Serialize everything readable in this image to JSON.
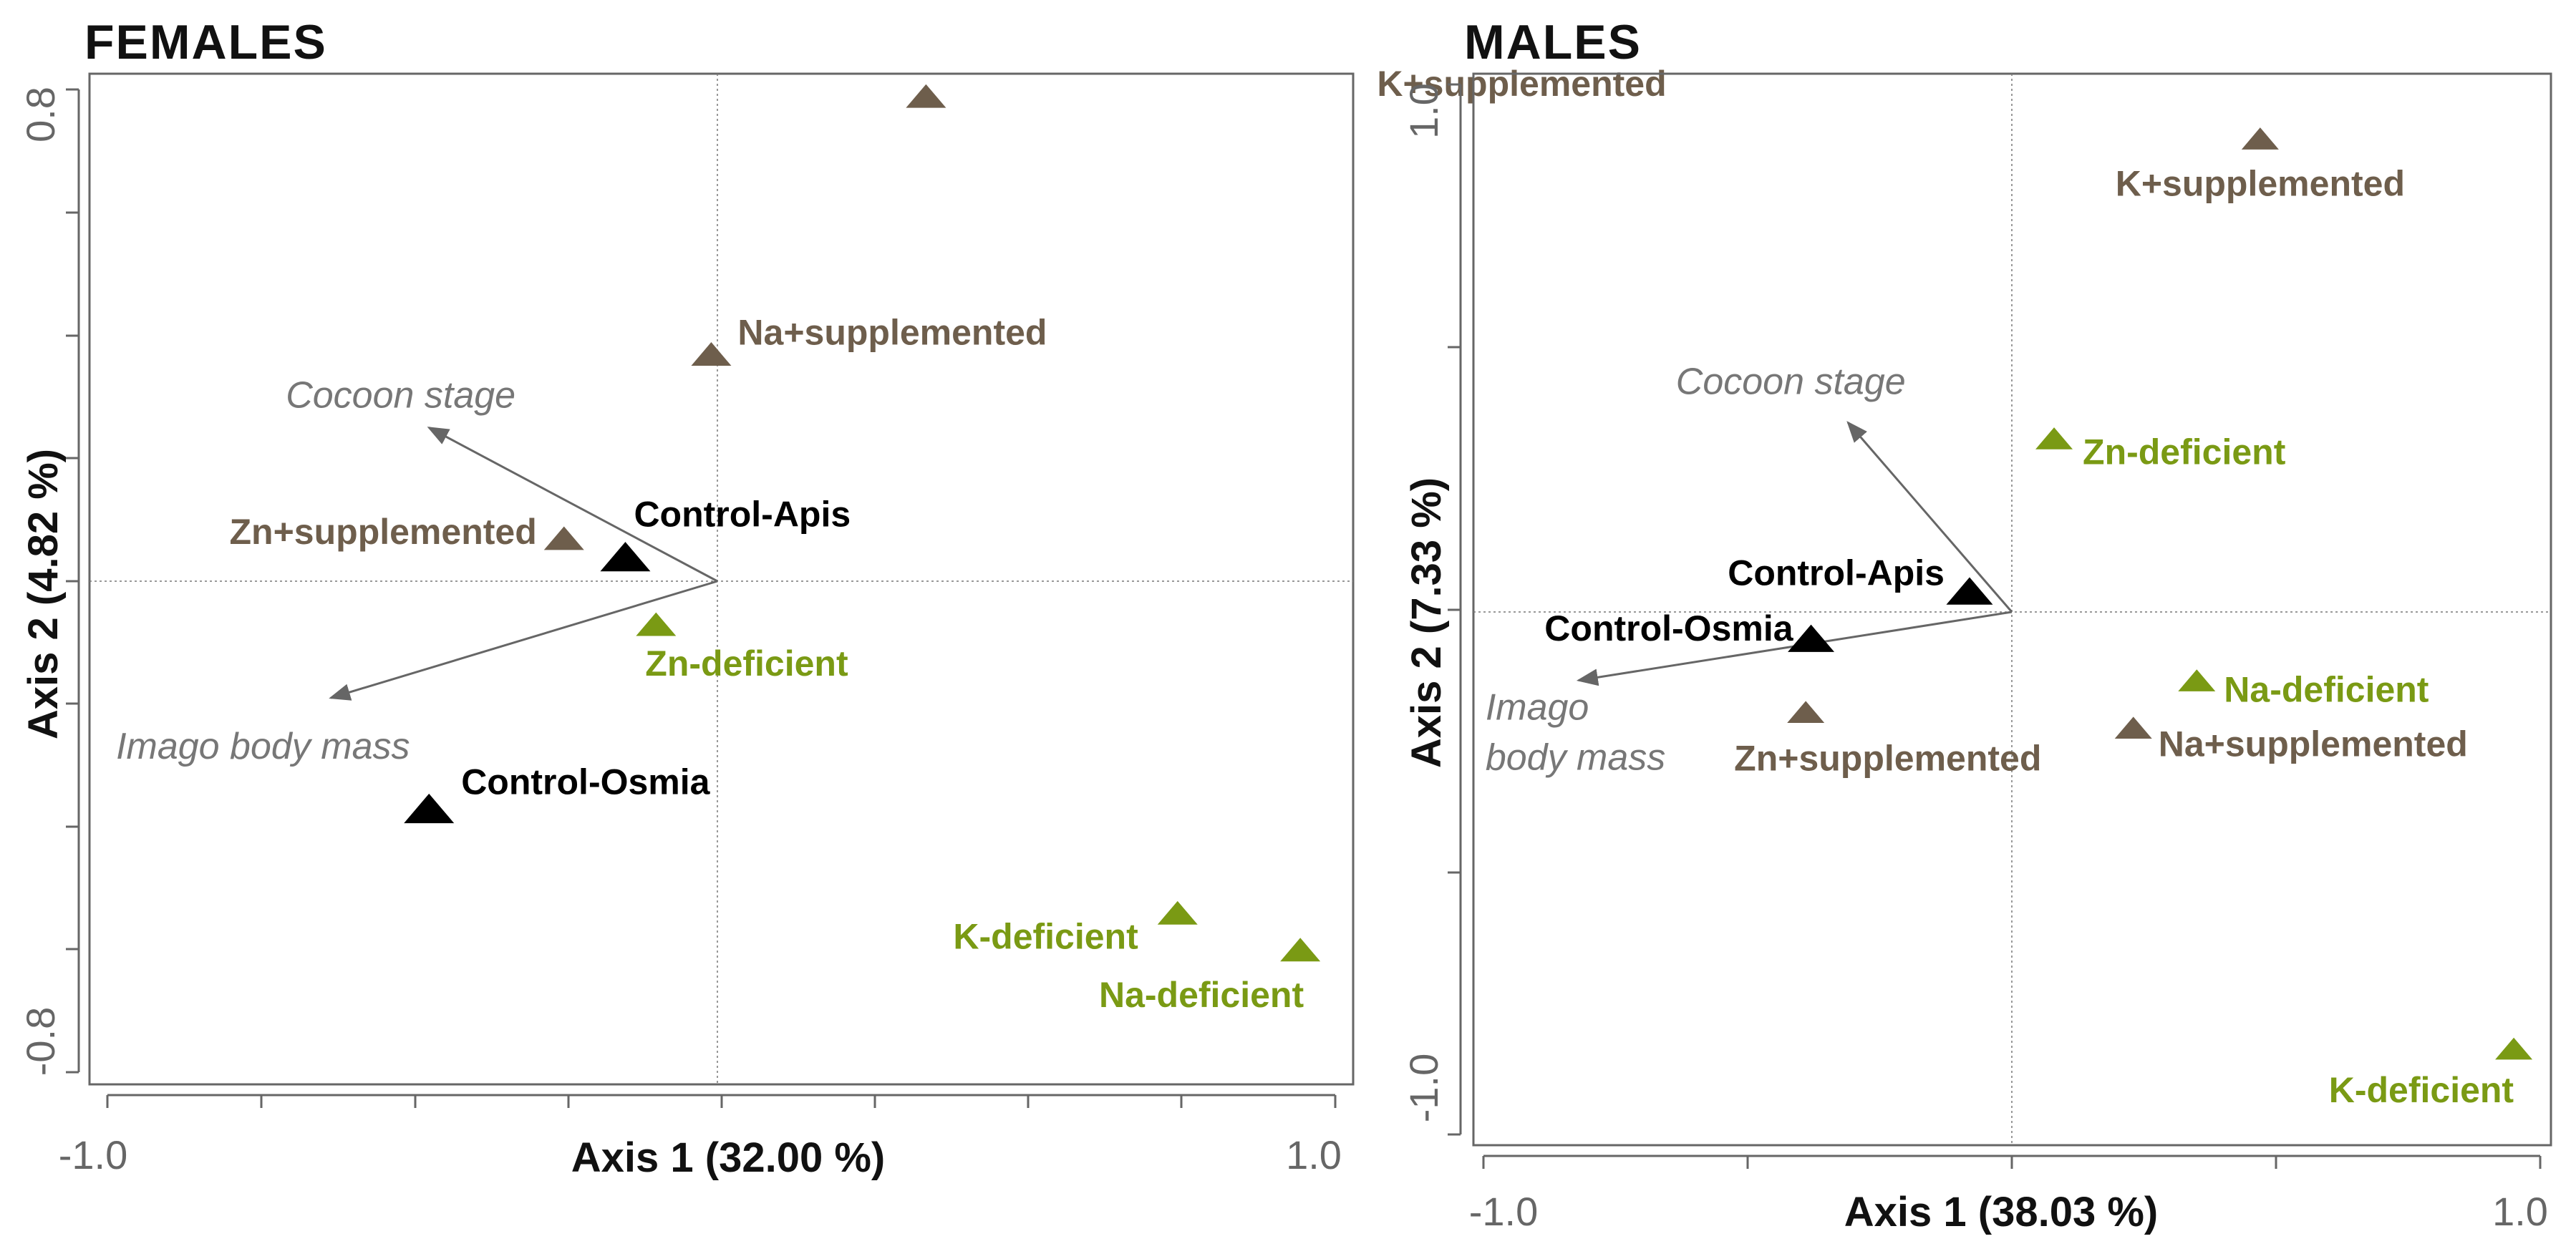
{
  "colors": {
    "supplemented": "#6e5e4c",
    "deficient": "#7a9a14",
    "control": "#000000",
    "vector": "#666666",
    "frame": "#666666",
    "grid": "#777777"
  },
  "chart_data": [
    {
      "type": "scatter",
      "title": "FEMALES",
      "xlabel": "Axis 1 (32.00 %)",
      "ylabel": "Axis 2 (4.82 %)",
      "xlim": [
        -1.0,
        1.0
      ],
      "ylim": [
        -0.8,
        0.8
      ],
      "x_tick_labels": [
        "-1.0",
        "1.0"
      ],
      "y_tick_labels": [
        "-0.8",
        "0.8"
      ],
      "points": [
        {
          "label": "K+supplemented",
          "group": "supplemented",
          "x": 0.34,
          "y": 0.79
        },
        {
          "label": "Na+supplemented",
          "group": "supplemented",
          "x": -0.01,
          "y": 0.37
        },
        {
          "label": "Zn+supplemented",
          "group": "supplemented",
          "x": -0.25,
          "y": 0.07
        },
        {
          "label": "Control-Apis",
          "group": "control",
          "x": -0.15,
          "y": 0.04
        },
        {
          "label": "Zn-deficient",
          "group": "deficient",
          "x": -0.1,
          "y": -0.07
        },
        {
          "label": "Control-Osmia",
          "group": "control",
          "x": -0.47,
          "y": -0.37
        },
        {
          "label": "K-deficient",
          "group": "deficient",
          "x": 0.75,
          "y": -0.54
        },
        {
          "label": "Na-deficient",
          "group": "deficient",
          "x": 0.95,
          "y": -0.6
        }
      ],
      "vectors": [
        {
          "label": "Cocoon stage",
          "x": -0.47,
          "y": 0.25
        },
        {
          "label": "Imago body mass",
          "x": -0.63,
          "y": -0.19
        }
      ]
    },
    {
      "type": "scatter",
      "title": "MALES",
      "xlabel": "Axis 1 (38.03 %)",
      "ylabel": "Axis 2 (7.33 %)",
      "xlim": [
        -1.0,
        1.0
      ],
      "ylim": [
        -1.0,
        1.0
      ],
      "x_tick_labels": [
        "-1.0",
        "1.0"
      ],
      "y_tick_labels": [
        "-1.0",
        "1.0"
      ],
      "points": [
        {
          "label": "K+supplemented",
          "group": "supplemented",
          "x": 0.47,
          "y": 0.9
        },
        {
          "label": "Zn-deficient",
          "group": "deficient",
          "x": 0.08,
          "y": 0.33
        },
        {
          "label": "Control-Apis",
          "group": "control",
          "x": -0.08,
          "y": 0.04
        },
        {
          "label": "Control-Osmia",
          "group": "control",
          "x": -0.38,
          "y": -0.05
        },
        {
          "label": "Na-deficient",
          "group": "deficient",
          "x": 0.35,
          "y": -0.13
        },
        {
          "label": "Na+supplemented",
          "group": "supplemented",
          "x": 0.23,
          "y": -0.22
        },
        {
          "label": "Zn+supplemented",
          "group": "supplemented",
          "x": -0.39,
          "y": -0.19
        },
        {
          "label": "K-deficient",
          "group": "deficient",
          "x": 0.95,
          "y": -0.83
        }
      ],
      "vectors": [
        {
          "label": "Cocoon stage",
          "x": -0.31,
          "y": 0.36
        },
        {
          "label": "Imago body mass",
          "x": -0.82,
          "y": -0.13
        }
      ]
    }
  ]
}
